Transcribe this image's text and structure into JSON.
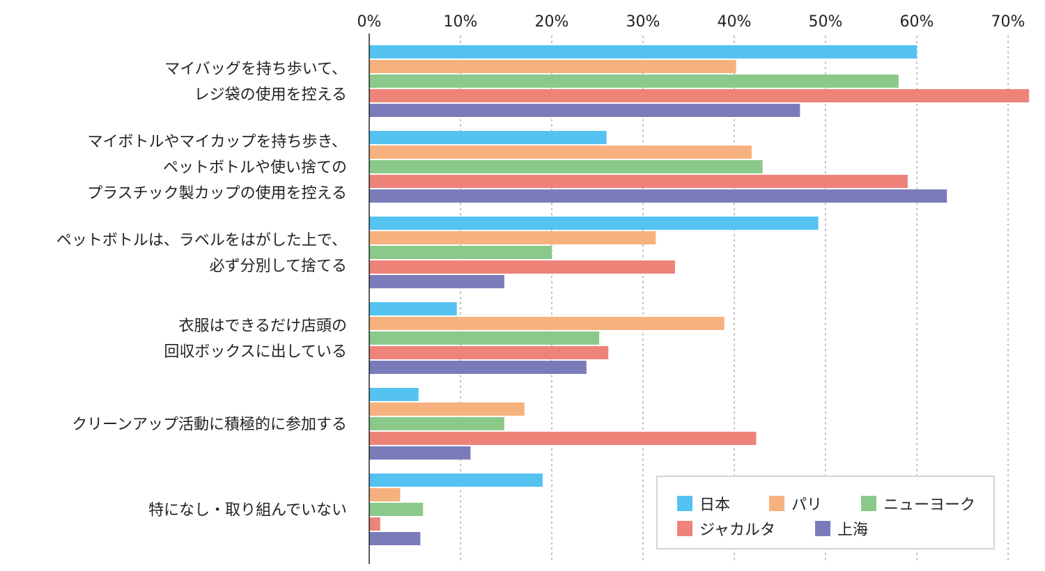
{
  "chart_data": {
    "type": "bar",
    "orientation": "horizontal",
    "x_ticks": [
      "0%",
      "10%",
      "20%",
      "30%",
      "40%",
      "50%",
      "60%",
      "70%"
    ],
    "xlim": [
      0,
      72
    ],
    "grid": true,
    "legend_position": "bottom-right",
    "categories": [
      [
        "マイバッグを持ち歩いて、",
        "レジ袋の使用を控える"
      ],
      [
        "マイボトルやマイカップを持ち歩き、",
        "ペットボトルや使い捨ての",
        "プラスチック製カップの使用を控える"
      ],
      [
        "ペットボトルは、ラベルをはがした上で、",
        "必ず分別して捨てる"
      ],
      [
        "衣服はできるだけ店頭の",
        "回収ボックスに出している"
      ],
      [
        "クリーンアップ活動に積極的に参加する"
      ],
      [
        "特になし・取り組んでいない"
      ]
    ],
    "series": [
      {
        "name": "日本",
        "color": "#55c3f1",
        "values": [
          60.0,
          26.0,
          49.2,
          9.6,
          5.4,
          19.0
        ]
      },
      {
        "name": "パリ",
        "color": "#f6b17f",
        "values": [
          40.2,
          41.9,
          31.4,
          38.9,
          17.0,
          3.4
        ]
      },
      {
        "name": "ニューヨーク",
        "color": "#8bc98a",
        "values": [
          58.0,
          43.1,
          20.0,
          25.2,
          14.8,
          5.9
        ]
      },
      {
        "name": "ジャカルタ",
        "color": "#ee837a",
        "values": [
          72.3,
          59.0,
          33.5,
          26.2,
          42.4,
          1.2
        ]
      },
      {
        "name": "上海",
        "color": "#7a7cba",
        "values": [
          47.2,
          63.3,
          14.8,
          23.8,
          11.1,
          5.6
        ]
      }
    ]
  }
}
